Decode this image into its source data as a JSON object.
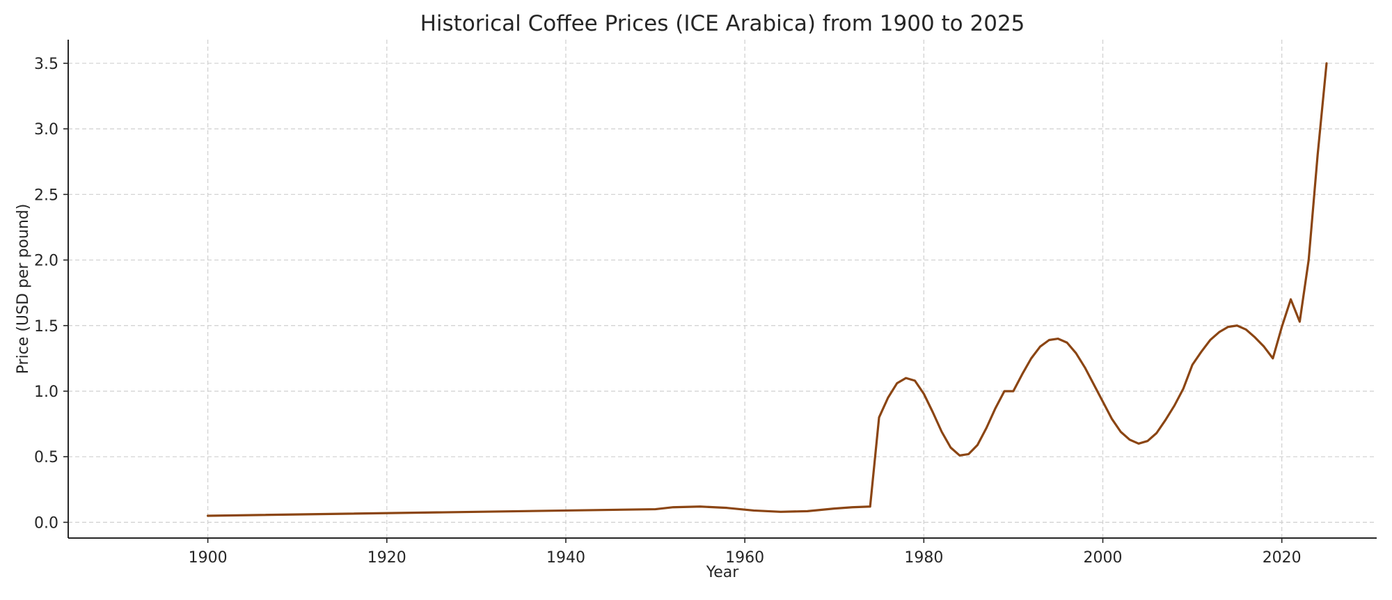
{
  "chart_data": {
    "type": "line",
    "title": "Historical Coffee Prices (ICE Arabica) from 1900 to 2025",
    "xlabel": "Year",
    "ylabel": "Price (USD per pound)",
    "xlim": [
      1884.4,
      2030.6
    ],
    "ylim": [
      -0.12,
      3.68
    ],
    "x_ticks": [
      1900,
      1920,
      1940,
      1960,
      1980,
      2000,
      2020
    ],
    "y_ticks": [
      "0.0",
      "0.5",
      "1.0",
      "1.5",
      "2.0",
      "2.5",
      "3.0",
      "3.5"
    ],
    "grid": true,
    "legend": "none",
    "line_color": "#8B4513",
    "x": [
      1900,
      1950,
      1952,
      1955,
      1958,
      1961,
      1964,
      1967,
      1970,
      1972,
      1974,
      1975,
      1976,
      1977,
      1978,
      1979,
      1980,
      1981,
      1982,
      1983,
      1984,
      1985,
      1986,
      1987,
      1988,
      1989,
      1990,
      1991,
      1992,
      1993,
      1994,
      1995,
      1996,
      1997,
      1998,
      1999,
      2000,
      2001,
      2002,
      2003,
      2004,
      2005,
      2006,
      2007,
      2008,
      2009,
      2010,
      2011,
      2012,
      2013,
      2014,
      2015,
      2016,
      2017,
      2018,
      2019,
      2020,
      2021,
      2022,
      2023,
      2024,
      2025
    ],
    "values": [
      0.05,
      0.1,
      0.115,
      0.12,
      0.11,
      0.09,
      0.08,
      0.085,
      0.105,
      0.115,
      0.12,
      0.8,
      0.95,
      1.06,
      1.1,
      1.08,
      0.98,
      0.84,
      0.69,
      0.57,
      0.51,
      0.52,
      0.59,
      0.72,
      0.87,
      1.0,
      1.0,
      1.13,
      1.25,
      1.34,
      1.39,
      1.4,
      1.37,
      1.29,
      1.18,
      1.05,
      0.92,
      0.79,
      0.69,
      0.63,
      0.6,
      0.62,
      0.68,
      0.78,
      0.89,
      1.02,
      1.2,
      1.3,
      1.39,
      1.45,
      1.49,
      1.5,
      1.47,
      1.41,
      1.34,
      1.25,
      1.49,
      1.7,
      1.53,
      2.0,
      2.8,
      3.5
    ]
  }
}
